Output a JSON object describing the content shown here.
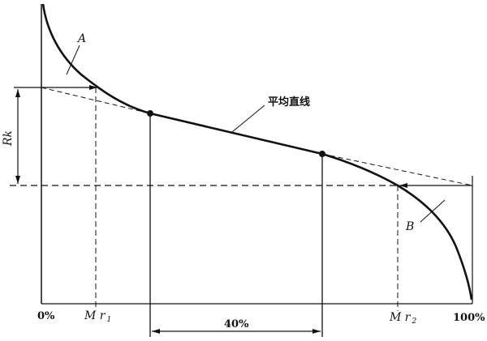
{
  "labels": {
    "curve_a": "A",
    "curve_b": "B",
    "mean_line": "平均直线",
    "rk": "Rk",
    "zero": "0%",
    "hundred": "100%",
    "mr1_main": "M r",
    "mr1_sub": "1",
    "mr2_main": "M r",
    "mr2_sub": "2",
    "span": "40%"
  },
  "colors": {
    "ink": "#111111",
    "background": "#ffffff"
  }
}
